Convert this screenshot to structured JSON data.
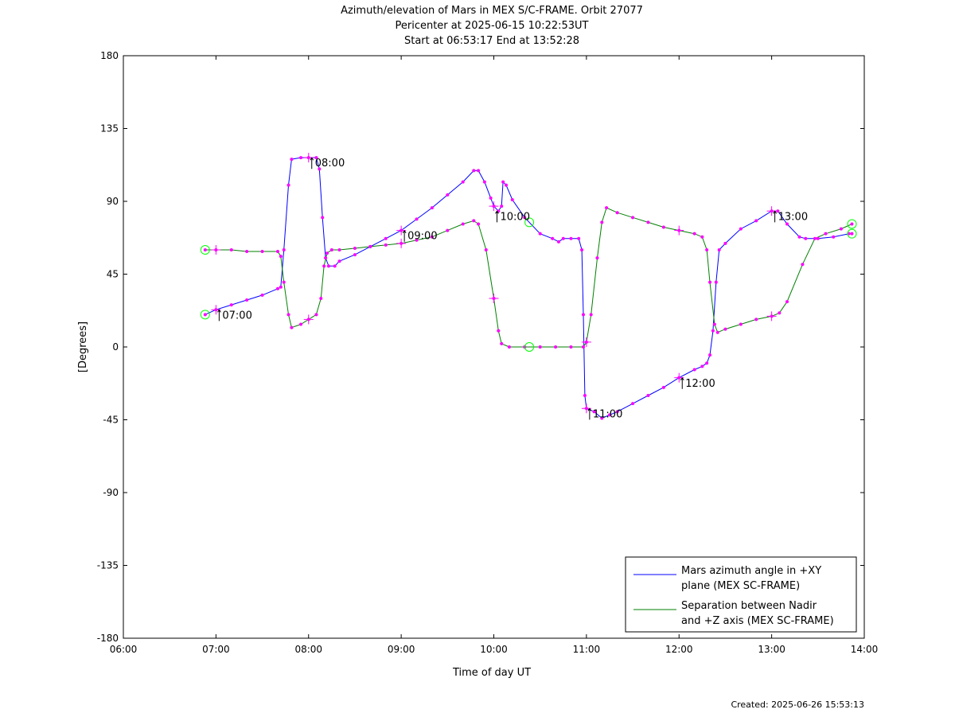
{
  "chart_data": {
    "type": "line",
    "title": "Azimuth/elevation of Mars in MEX S/C-FRAME.  Orbit 27077",
    "subtitle_1": "Pericenter at 2025-06-15 10:22:53UT",
    "subtitle_2": "Start at 06:53:17 End at 13:52:28",
    "xlabel": "Time of day UT",
    "ylabel": "[Degrees]",
    "xlim": [
      "06:00",
      "14:00"
    ],
    "ylim": [
      -180,
      180
    ],
    "x_ticks": [
      "06:00",
      "07:00",
      "08:00",
      "09:00",
      "10:00",
      "11:00",
      "12:00",
      "13:00",
      "14:00"
    ],
    "y_ticks": [
      "180",
      "135",
      "90",
      "45",
      "0",
      "-45",
      "-90",
      "-135",
      "-180"
    ],
    "grid": false,
    "legend_position": "bottom-right",
    "series": [
      {
        "name": "Mars azimuth angle in +XY plane (MEX SC-FRAME)",
        "legend_lines": [
          "Mars azimuth angle in +XY",
          "plane (MEX SC-FRAME)"
        ],
        "color": "#0000ff",
        "points": [
          [
            "06:53",
            20
          ],
          [
            "07:00",
            23
          ],
          [
            "07:10",
            26
          ],
          [
            "07:20",
            29
          ],
          [
            "07:30",
            32
          ],
          [
            "07:40",
            36
          ],
          [
            "07:42",
            37
          ],
          [
            "07:44",
            60
          ],
          [
            "07:47",
            100
          ],
          [
            "07:49",
            116
          ],
          [
            "07:55",
            117
          ],
          [
            "08:00",
            117
          ],
          [
            "08:05",
            117
          ],
          [
            "08:07",
            110
          ],
          [
            "08:09",
            80
          ],
          [
            "08:11",
            55
          ],
          [
            "08:13",
            50
          ],
          [
            "08:17",
            50
          ],
          [
            "08:20",
            53
          ],
          [
            "08:30",
            57
          ],
          [
            "08:40",
            62
          ],
          [
            "08:50",
            67
          ],
          [
            "09:00",
            72
          ],
          [
            "09:10",
            79
          ],
          [
            "09:20",
            86
          ],
          [
            "09:30",
            94
          ],
          [
            "09:40",
            102
          ],
          [
            "09:47",
            109
          ],
          [
            "09:50",
            109
          ],
          [
            "09:54",
            102
          ],
          [
            "09:58",
            92
          ],
          [
            "10:00",
            87
          ],
          [
            "10:03",
            84
          ],
          [
            "10:05",
            87
          ],
          [
            "10:06",
            102
          ],
          [
            "10:08",
            100
          ],
          [
            "10:12",
            91
          ],
          [
            "10:20",
            80
          ],
          [
            "10:30",
            70
          ],
          [
            "10:38",
            67
          ],
          [
            "10:42",
            65
          ],
          [
            "10:45",
            67
          ],
          [
            "10:50",
            67
          ],
          [
            "10:55",
            67
          ],
          [
            "10:57",
            60
          ],
          [
            "10:58",
            20
          ],
          [
            "10:59",
            -30
          ],
          [
            "11:00",
            -38
          ],
          [
            "11:05",
            -40
          ],
          [
            "11:10",
            -44
          ],
          [
            "11:15",
            -42
          ],
          [
            "11:20",
            -40
          ],
          [
            "11:30",
            -35
          ],
          [
            "11:40",
            -30
          ],
          [
            "11:50",
            -25
          ],
          [
            "12:00",
            -19
          ],
          [
            "12:10",
            -14
          ],
          [
            "12:15",
            -12
          ],
          [
            "12:18",
            -10
          ],
          [
            "12:20",
            -5
          ],
          [
            "12:22",
            10
          ],
          [
            "12:24",
            40
          ],
          [
            "12:26",
            60
          ],
          [
            "12:30",
            64
          ],
          [
            "12:40",
            73
          ],
          [
            "12:50",
            78
          ],
          [
            "13:00",
            84
          ],
          [
            "13:04",
            84
          ],
          [
            "13:10",
            76
          ],
          [
            "13:18",
            68
          ],
          [
            "13:22",
            67
          ],
          [
            "13:30",
            67
          ],
          [
            "13:40",
            68
          ],
          [
            "13:50",
            70
          ],
          [
            "13:52",
            70
          ]
        ]
      },
      {
        "name": "Separation between Nadir and +Z axis (MEX SC-FRAME)",
        "legend_lines": [
          "Separation between Nadir",
          "and +Z axis (MEX SC-FRAME)"
        ],
        "color": "#008000",
        "points": [
          [
            "06:53",
            60
          ],
          [
            "07:00",
            60
          ],
          [
            "07:10",
            60
          ],
          [
            "07:20",
            59
          ],
          [
            "07:30",
            59
          ],
          [
            "07:40",
            59
          ],
          [
            "07:42",
            56
          ],
          [
            "07:44",
            40
          ],
          [
            "07:47",
            20
          ],
          [
            "07:49",
            12
          ],
          [
            "07:55",
            14
          ],
          [
            "08:00",
            17
          ],
          [
            "08:05",
            20
          ],
          [
            "08:08",
            30
          ],
          [
            "08:10",
            50
          ],
          [
            "08:12",
            58
          ],
          [
            "08:15",
            60
          ],
          [
            "08:20",
            60
          ],
          [
            "08:30",
            61
          ],
          [
            "08:40",
            62
          ],
          [
            "08:50",
            63
          ],
          [
            "09:00",
            64
          ],
          [
            "09:10",
            66
          ],
          [
            "09:20",
            68
          ],
          [
            "09:30",
            72
          ],
          [
            "09:40",
            76
          ],
          [
            "09:47",
            78
          ],
          [
            "09:50",
            76
          ],
          [
            "09:55",
            60
          ],
          [
            "10:00",
            30
          ],
          [
            "10:03",
            10
          ],
          [
            "10:05",
            2
          ],
          [
            "10:10",
            0
          ],
          [
            "10:20",
            0
          ],
          [
            "10:30",
            0
          ],
          [
            "10:40",
            0
          ],
          [
            "10:50",
            0
          ],
          [
            "10:58",
            0
          ],
          [
            "11:00",
            3
          ],
          [
            "11:03",
            20
          ],
          [
            "11:07",
            55
          ],
          [
            "11:10",
            77
          ],
          [
            "11:13",
            86
          ],
          [
            "11:20",
            83
          ],
          [
            "11:30",
            80
          ],
          [
            "11:40",
            77
          ],
          [
            "11:50",
            74
          ],
          [
            "12:00",
            72
          ],
          [
            "12:10",
            70
          ],
          [
            "12:15",
            68
          ],
          [
            "12:18",
            60
          ],
          [
            "12:20",
            40
          ],
          [
            "12:23",
            14
          ],
          [
            "12:25",
            9
          ],
          [
            "12:30",
            11
          ],
          [
            "12:40",
            14
          ],
          [
            "12:50",
            17
          ],
          [
            "13:00",
            19
          ],
          [
            "13:05",
            21
          ],
          [
            "13:10",
            28
          ],
          [
            "13:20",
            51
          ],
          [
            "13:28",
            67
          ],
          [
            "13:35",
            70
          ],
          [
            "13:45",
            73
          ],
          [
            "13:52",
            76
          ]
        ]
      }
    ],
    "markers": {
      "dot_color": "#ff00ff",
      "circle_color": "#00ff00",
      "circles": [
        [
          "06:53",
          20
        ],
        [
          "06:53",
          60
        ],
        [
          "10:23",
          0
        ],
        [
          "10:23",
          77
        ],
        [
          "13:52",
          70
        ],
        [
          "13:52",
          76
        ]
      ]
    },
    "hour_annotations": [
      {
        "label": "07:00",
        "time": "07:00",
        "y": 19
      },
      {
        "label": "08:00",
        "time": "08:00",
        "y": 113
      },
      {
        "label": "09:00",
        "time": "09:00",
        "y": 68
      },
      {
        "label": "10:00",
        "time": "10:00",
        "y": 80
      },
      {
        "label": "11:00",
        "time": "11:00",
        "y": -42
      },
      {
        "label": "12:00",
        "time": "12:00",
        "y": -23
      },
      {
        "label": "13:00",
        "time": "13:00",
        "y": 80
      }
    ],
    "footer": "Created: 2025-06-26 15:53:13"
  }
}
